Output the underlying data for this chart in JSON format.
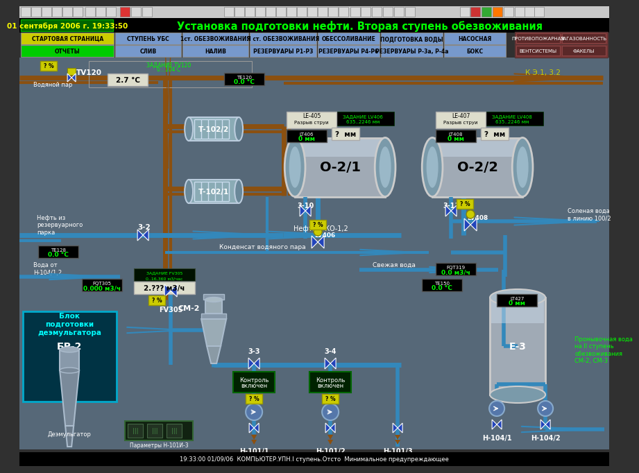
{
  "title": "Установка подготовки нефти. Вторая ступень обезвоживания",
  "datetime_str": "01 сентября 2006 г. 19:33:50",
  "bg_color": "#566878",
  "toolbar_bg": "#404040",
  "header_bg": "#000000",
  "title_color": "#00ff00",
  "datetime_color": "#ffff00",
  "nav_row1": [
    "СТАРТОВАЯ СТРАНИЦА",
    "СТУПЕНЬ УБС",
    "1ст. ОБЕЗВОЖИВАНИЯ",
    "II ст. ОБЕЗВОЖИВАНИЯ",
    "ОБЕССОЛИВАНИЕ",
    "ПОДГОТОВКА ВОДЫ",
    "НАСОСНАЯ"
  ],
  "nav_row1_colors": [
    "#cccc00",
    "#7799cc",
    "#7799cc",
    "#7799cc",
    "#7799cc",
    "#7799cc",
    "#7799cc"
  ],
  "nav_row2": [
    "ОТЧЕТЫ",
    "СЛИВ",
    "НАЛИВ",
    "РЕЗЕРВУАРЫ Р1-Р3",
    "РЕЗЕРВУАРЫ Р4-Р6",
    "РЕЗЕРВУАРЫ Р-3а, Р-4а",
    "БОКС"
  ],
  "nav_row2_colors": [
    "#00cc00",
    "#7799cc",
    "#7799cc",
    "#7799cc",
    "#7799cc",
    "#7799cc",
    "#7799cc"
  ],
  "nav_right1": [
    "ПРОТИВОПОЖАРНАЯ",
    "ЗАГАЗОВАННОСТЬ"
  ],
  "nav_right2": [
    "ВЕНТСИСТЕМЫ",
    "ФАКЕЛЫ"
  ],
  "status_bar": "19:33:00 01/09/06  КОМПЬЮТЕР.УПН.I ступень.Отсто  Минимальное предупреждающее",
  "pipe_brown": "#8B5010",
  "pipe_blue": "#3388bb",
  "pipe_blue2": "#2277aa"
}
